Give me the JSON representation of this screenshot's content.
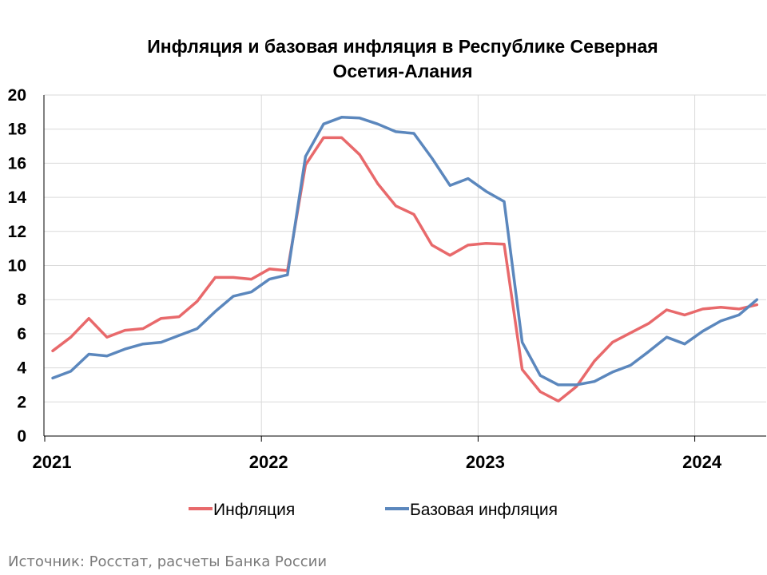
{
  "source": "Источник: Росстат, расчеты Банка России",
  "chart_data": {
    "type": "line",
    "title_line1": "Инфляция и базовая инфляция в Республике Северная",
    "title_line2": "Осетия-Алания",
    "ylim": [
      0,
      20
    ],
    "yticks": [
      "0",
      "2",
      "4",
      "6",
      "8",
      "10",
      "12",
      "14",
      "16",
      "18",
      "20"
    ],
    "xticks": [
      {
        "label": "2021",
        "month": 0
      },
      {
        "label": "2022",
        "month": 12
      },
      {
        "label": "2023",
        "month": 24
      },
      {
        "label": "2024",
        "month": 36
      }
    ],
    "grid": true,
    "legend_position": "bottom",
    "series": [
      {
        "name": "Инфляция",
        "color": "#E8696B",
        "values": [
          5.0,
          5.8,
          6.9,
          5.8,
          6.2,
          6.3,
          6.9,
          7.0,
          7.9,
          9.3,
          9.3,
          9.2,
          9.8,
          9.7,
          15.9,
          17.5,
          17.5,
          16.5,
          14.8,
          13.5,
          13.0,
          11.2,
          10.6,
          11.2,
          11.3,
          11.25,
          3.9,
          2.6,
          2.05,
          2.9,
          4.4,
          5.5,
          6.05,
          6.6,
          7.4,
          7.1,
          7.45,
          7.55,
          7.45,
          7.7
        ]
      },
      {
        "name": "Базовая инфляция",
        "color": "#5B87BD",
        "values": [
          3.4,
          3.8,
          4.8,
          4.7,
          5.1,
          5.4,
          5.5,
          5.9,
          6.3,
          7.3,
          8.2,
          8.45,
          9.2,
          9.45,
          16.4,
          18.3,
          18.7,
          18.65,
          18.3,
          17.85,
          17.75,
          16.3,
          14.7,
          15.1,
          14.35,
          13.75,
          5.5,
          3.55,
          3.0,
          3.0,
          3.2,
          3.75,
          4.15,
          4.95,
          5.8,
          5.4,
          6.15,
          6.75,
          7.1,
          8.0
        ]
      }
    ]
  }
}
